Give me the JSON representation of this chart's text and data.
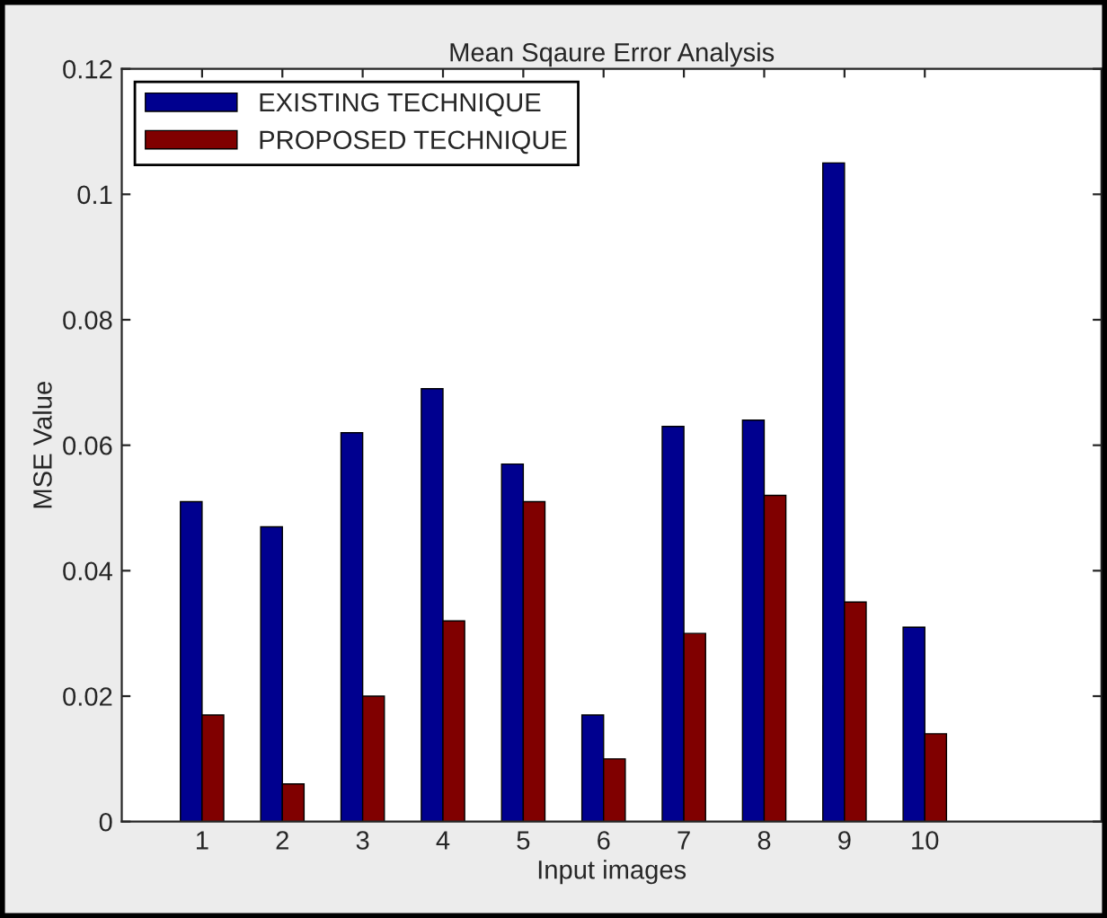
{
  "chart_data": {
    "type": "bar",
    "title": "Mean Sqaure Error Analysis",
    "xlabel": "Input images",
    "ylabel": "MSE Value",
    "categories": [
      "1",
      "2",
      "3",
      "4",
      "5",
      "6",
      "7",
      "8",
      "9",
      "10"
    ],
    "series": [
      {
        "name": "EXISTING TECHNIQUE",
        "color": "#00008f",
        "values": [
          0.051,
          0.047,
          0.062,
          0.069,
          0.057,
          0.017,
          0.063,
          0.064,
          0.105,
          0.031
        ]
      },
      {
        "name": "PROPOSED TECHNIQUE",
        "color": "#800000",
        "values": [
          0.017,
          0.006,
          0.02,
          0.032,
          0.051,
          0.01,
          0.03,
          0.052,
          0.035,
          0.014
        ]
      }
    ],
    "ylim": [
      0,
      0.12
    ],
    "yticks": [
      {
        "value": 0,
        "label": "0"
      },
      {
        "value": 0.02,
        "label": "0.02"
      },
      {
        "value": 0.04,
        "label": "0.04"
      },
      {
        "value": 0.06,
        "label": "0.06"
      },
      {
        "value": 0.08,
        "label": "0.08"
      },
      {
        "value": 0.1,
        "label": "0.1"
      },
      {
        "value": 0.12,
        "label": "0.12"
      }
    ],
    "grid": false,
    "legend": "top left"
  }
}
